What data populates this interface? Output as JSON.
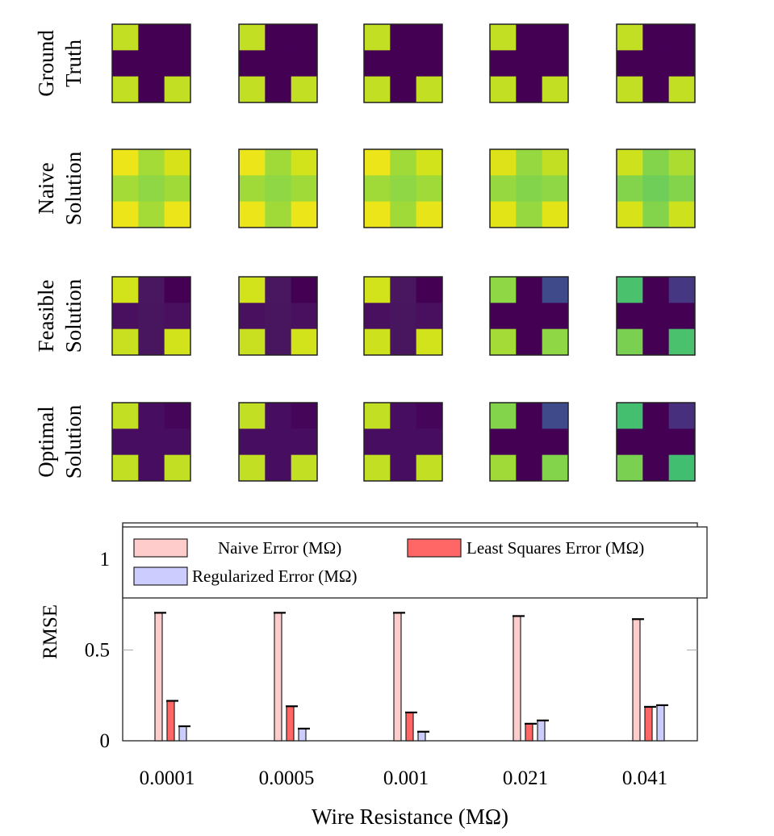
{
  "row_labels": [
    [
      "Ground",
      "Truth"
    ],
    [
      "Naive",
      "Solution"
    ],
    [
      "Feasible",
      "Solution"
    ],
    [
      "Optimal",
      "Solution"
    ]
  ],
  "heatmaps": {
    "colormap": "viridis",
    "rows": [
      [
        [
          [
            "#c2df23",
            "#440154",
            "#440154"
          ],
          [
            "#440154",
            "#440154",
            "#440154"
          ],
          [
            "#c2df23",
            "#440154",
            "#c2df23"
          ]
        ],
        [
          [
            "#c2df23",
            "#440154",
            "#440154"
          ],
          [
            "#440154",
            "#440154",
            "#440154"
          ],
          [
            "#c2df23",
            "#440154",
            "#c2df23"
          ]
        ],
        [
          [
            "#c2df23",
            "#440154",
            "#440154"
          ],
          [
            "#440154",
            "#440154",
            "#440154"
          ],
          [
            "#c2df23",
            "#440154",
            "#c2df23"
          ]
        ],
        [
          [
            "#c2df23",
            "#440154",
            "#440154"
          ],
          [
            "#440154",
            "#440154",
            "#440154"
          ],
          [
            "#c2df23",
            "#440154",
            "#c2df23"
          ]
        ],
        [
          [
            "#c2df23",
            "#440154",
            "#440154"
          ],
          [
            "#440154",
            "#440154",
            "#440154"
          ],
          [
            "#c2df23",
            "#440154",
            "#c2df23"
          ]
        ]
      ],
      [
        [
          [
            "#ebe51a",
            "#a5db36",
            "#d8e219"
          ],
          [
            "#a5db36",
            "#8fd744",
            "#a0da39"
          ],
          [
            "#ebe51a",
            "#a5db36",
            "#ebe51a"
          ]
        ],
        [
          [
            "#ebe51a",
            "#a0da39",
            "#d2e21b"
          ],
          [
            "#a0da39",
            "#8fd744",
            "#a0da39"
          ],
          [
            "#ebe51a",
            "#a0da39",
            "#ebe51a"
          ]
        ],
        [
          [
            "#ebe51a",
            "#a0da39",
            "#d2e21b"
          ],
          [
            "#a0da39",
            "#8fd744",
            "#a0da39"
          ],
          [
            "#ebe51a",
            "#a0da39",
            "#e7e419"
          ]
        ],
        [
          [
            "#dde318",
            "#95d840",
            "#c2df23"
          ],
          [
            "#95d840",
            "#84d44b",
            "#8fd744"
          ],
          [
            "#e2e418",
            "#95d840",
            "#e2e418"
          ]
        ],
        [
          [
            "#cde11d",
            "#84d44b",
            "#addc30"
          ],
          [
            "#84d44b",
            "#6ece58",
            "#84d44b"
          ],
          [
            "#d8e219",
            "#84d44b",
            "#cde11d"
          ]
        ]
      ],
      [
        [
          [
            "#d2e21b",
            "#48175f",
            "#440154"
          ],
          [
            "#48105f",
            "#48165f",
            "#48105f"
          ],
          [
            "#c8e020",
            "#48165f",
            "#d2e21b"
          ]
        ],
        [
          [
            "#d2e21b",
            "#48175f",
            "#440154"
          ],
          [
            "#48105f",
            "#48165f",
            "#48105f"
          ],
          [
            "#c8e020",
            "#48165f",
            "#d2e21b"
          ]
        ],
        [
          [
            "#d2e21b",
            "#48175f",
            "#440154"
          ],
          [
            "#48105f",
            "#48165f",
            "#48105f"
          ],
          [
            "#cde11d",
            "#48165f",
            "#d2e21b"
          ]
        ],
        [
          [
            "#8fd744",
            "#440154",
            "#3e4a89"
          ],
          [
            "#440154",
            "#440154",
            "#440154"
          ],
          [
            "#a5db36",
            "#440154",
            "#8fd744"
          ]
        ],
        [
          [
            "#4ac16d",
            "#440154",
            "#453781"
          ],
          [
            "#440154",
            "#440154",
            "#440154"
          ],
          [
            "#7ad151",
            "#440154",
            "#4ac16d"
          ]
        ]
      ],
      [
        [
          [
            "#c2df23",
            "#470d60",
            "#450559"
          ],
          [
            "#470d60",
            "#470d60",
            "#470d60"
          ],
          [
            "#c2df23",
            "#470d60",
            "#c2df23"
          ]
        ],
        [
          [
            "#c2df23",
            "#470d60",
            "#450559"
          ],
          [
            "#470d60",
            "#470d60",
            "#470d60"
          ],
          [
            "#c2df23",
            "#470d60",
            "#c2df23"
          ]
        ],
        [
          [
            "#c2df23",
            "#470d60",
            "#450559"
          ],
          [
            "#470d60",
            "#470d60",
            "#470d60"
          ],
          [
            "#c2df23",
            "#470d60",
            "#c2df23"
          ]
        ],
        [
          [
            "#84d44b",
            "#440154",
            "#3e4a89"
          ],
          [
            "#440154",
            "#440154",
            "#440154"
          ],
          [
            "#a0da39",
            "#440154",
            "#84d44b"
          ]
        ],
        [
          [
            "#44bf70",
            "#440154",
            "#482f7e"
          ],
          [
            "#440154",
            "#440154",
            "#440154"
          ],
          [
            "#7ad151",
            "#440154",
            "#42be71"
          ]
        ]
      ]
    ]
  },
  "chart_data": {
    "type": "bar",
    "xlabel": "Wire Resistance (MΩ)",
    "ylabel": "RMSE",
    "categories": [
      "0.0001",
      "0.0005",
      "0.001",
      "0.021",
      "0.041"
    ],
    "ylim": [
      0,
      1.2
    ],
    "yticks": [
      0,
      0.5,
      1
    ],
    "ytick_labels": [
      "0",
      "0.5",
      "1"
    ],
    "legend_placement": "top",
    "error_bars": true,
    "series": [
      {
        "name": "Naive Error (MΩ)",
        "color": "#ffcccc",
        "values": [
          0.705,
          0.705,
          0.705,
          0.687,
          0.67
        ]
      },
      {
        "name": "Least Squares Error (MΩ)",
        "color": "#ff6666",
        "values": [
          0.22,
          0.19,
          0.156,
          0.094,
          0.187
        ]
      },
      {
        "name": "Regularized Error (MΩ)",
        "color": "#ccccff",
        "values": [
          0.08,
          0.067,
          0.05,
          0.112,
          0.196
        ]
      }
    ]
  }
}
